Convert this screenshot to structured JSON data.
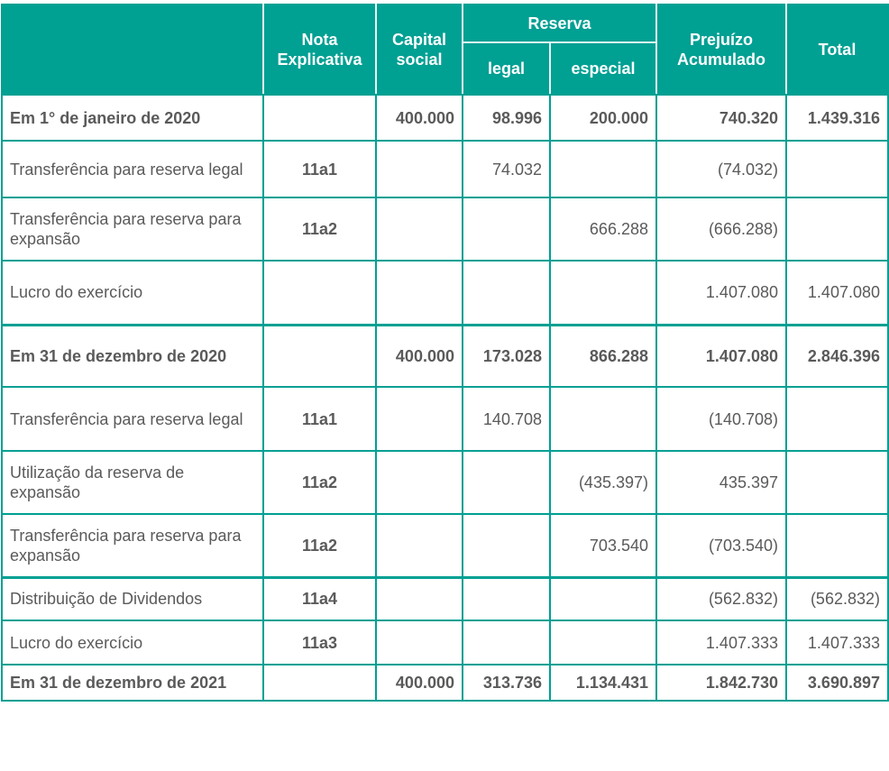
{
  "table": {
    "header": {
      "description": "",
      "note": "Nota Explicativa",
      "capital": "Capital social",
      "reserva_group": "Reserva",
      "reserva_legal": "legal",
      "reserva_especial": "especial",
      "prejuizo": "Prejuízo Acumulado",
      "total": "Total"
    },
    "rows": [
      {
        "description": "Em 1° de janeiro de 2020",
        "note": "",
        "capital": "400.000",
        "legal": "98.996",
        "especial": "200.000",
        "prejuizo": "740.320",
        "total": "1.439.316"
      },
      {
        "description": "Transferência para reserva legal",
        "note": "11a1",
        "capital": "",
        "legal": "74.032",
        "especial": "",
        "prejuizo": "(74.032)",
        "total": ""
      },
      {
        "description": "Transferência para reserva para expansão",
        "note": "11a2",
        "capital": "",
        "legal": "",
        "especial": "666.288",
        "prejuizo": "(666.288)",
        "total": ""
      },
      {
        "description": "Lucro do exercício",
        "note": "",
        "capital": "",
        "legal": "",
        "especial": "",
        "prejuizo": "1.407.080",
        "total": "1.407.080"
      },
      {
        "description": "Em 31 de dezembro de 2020",
        "note": "",
        "capital": "400.000",
        "legal": "173.028",
        "especial": "866.288",
        "prejuizo": "1.407.080",
        "total": "2.846.396"
      },
      {
        "description": "Transferência para reserva legal",
        "note": "11a1",
        "capital": "",
        "legal": "140.708",
        "especial": "",
        "prejuizo": "(140.708)",
        "total": ""
      },
      {
        "description": "Utilização da reserva de expansão",
        "note": "11a2",
        "capital": "",
        "legal": "",
        "especial": "(435.397)",
        "prejuizo": "435.397",
        "total": ""
      },
      {
        "description": "Transferência para reserva para expansão",
        "note": "11a2",
        "capital": "",
        "legal": "",
        "especial": "703.540",
        "prejuizo": "(703.540)",
        "total": ""
      },
      {
        "description": "Distribuição de Dividendos",
        "note": "11a4",
        "capital": "",
        "legal": "",
        "especial": "",
        "prejuizo": "(562.832)",
        "total": "(562.832)"
      },
      {
        "description": "Lucro do exercício",
        "note": "11a3",
        "capital": "",
        "legal": "",
        "especial": "",
        "prejuizo": "1.407.333",
        "total": "1.407.333"
      },
      {
        "description": "Em 31 de dezembro de 2021",
        "note": "",
        "capital": "400.000",
        "legal": "313.736",
        "especial": "1.134.431",
        "prejuizo": "1.842.730",
        "total": "3.690.897"
      }
    ]
  },
  "colors": {
    "accent": "#00a093",
    "text": "#5a5a5a",
    "header_text": "#ffffff"
  }
}
